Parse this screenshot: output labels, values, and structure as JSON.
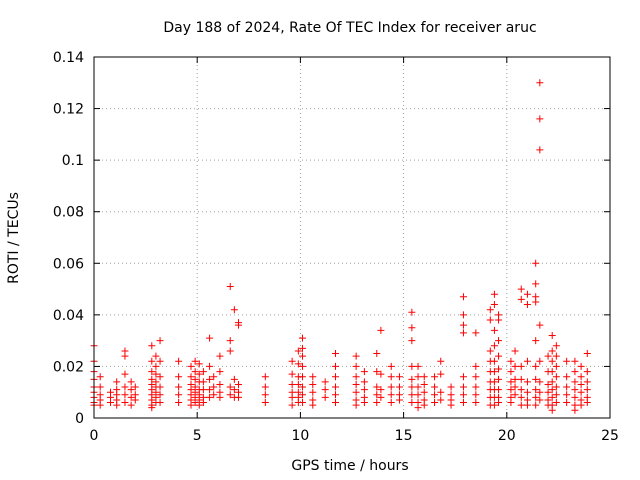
{
  "chart_data": {
    "type": "scatter",
    "title": "Day 188 of 2024, Rate Of TEC Index for receiver aruc",
    "xlabel": "GPS time / hours",
    "ylabel": "ROTI / TECUs",
    "xlim": [
      0,
      25
    ],
    "ylim": [
      0,
      0.14
    ],
    "x_ticks": [
      0,
      5,
      10,
      15,
      20,
      25
    ],
    "y_ticks": [
      0,
      0.02,
      0.04,
      0.06,
      0.08,
      0.1,
      0.12,
      0.14
    ],
    "x_tick_labels": [
      "0",
      "5",
      "10",
      "15",
      "20",
      "25"
    ],
    "y_tick_labels": [
      "0",
      "0.02",
      "0.04",
      "0.06",
      "0.08",
      "0.1",
      "0.12",
      "0.14"
    ],
    "grid": true,
    "marker": "plus",
    "marker_color": "#ff0000",
    "point_groups": [
      {
        "x": 0.0,
        "y": [
          0.028,
          0.022,
          0.018,
          0.015,
          0.012,
          0.01,
          0.008,
          0.006,
          0.005
        ]
      },
      {
        "x": 0.3,
        "y": [
          0.016,
          0.012,
          0.009,
          0.007,
          0.005
        ]
      },
      {
        "x": 0.8,
        "y": [
          0.01,
          0.008,
          0.006
        ]
      },
      {
        "x": 1.1,
        "y": [
          0.014,
          0.011,
          0.009,
          0.007,
          0.005
        ]
      },
      {
        "x": 1.5,
        "y": [
          0.026,
          0.024,
          0.017,
          0.012,
          0.009,
          0.006
        ]
      },
      {
        "x": 1.8,
        "y": [
          0.014,
          0.011,
          0.008,
          0.005
        ]
      },
      {
        "x": 2.0,
        "y": [
          0.012,
          0.009,
          0.007
        ]
      },
      {
        "x": 2.8,
        "y": [
          0.028,
          0.022,
          0.018,
          0.015,
          0.013,
          0.011,
          0.009,
          0.007,
          0.005,
          0.004
        ]
      },
      {
        "x": 3.0,
        "y": [
          0.024,
          0.02,
          0.017,
          0.014,
          0.012,
          0.01,
          0.008,
          0.006
        ]
      },
      {
        "x": 3.2,
        "y": [
          0.03,
          0.022,
          0.016,
          0.012,
          0.009,
          0.006
        ]
      },
      {
        "x": 4.1,
        "y": [
          0.022,
          0.016,
          0.012,
          0.009,
          0.006
        ]
      },
      {
        "x": 4.7,
        "y": [
          0.02,
          0.016,
          0.013,
          0.011,
          0.009,
          0.007,
          0.005
        ]
      },
      {
        "x": 4.9,
        "y": [
          0.022,
          0.018,
          0.015,
          0.012,
          0.01,
          0.008,
          0.006
        ]
      },
      {
        "x": 5.1,
        "y": [
          0.021,
          0.017,
          0.014,
          0.011,
          0.009,
          0.007,
          0.005
        ]
      },
      {
        "x": 5.3,
        "y": [
          0.018,
          0.014,
          0.011,
          0.008,
          0.006
        ]
      },
      {
        "x": 5.6,
        "y": [
          0.031,
          0.02,
          0.015,
          0.011,
          0.008
        ]
      },
      {
        "x": 5.8,
        "y": [
          0.016,
          0.012,
          0.009
        ]
      },
      {
        "x": 6.1,
        "y": [
          0.024,
          0.018,
          0.013,
          0.01,
          0.008
        ]
      },
      {
        "x": 6.6,
        "y": [
          0.051,
          0.03,
          0.026,
          0.012,
          0.009
        ]
      },
      {
        "x": 6.8,
        "y": [
          0.042,
          0.015,
          0.011,
          0.008
        ]
      },
      {
        "x": 7.0,
        "y": [
          0.037,
          0.036,
          0.013,
          0.01,
          0.008
        ]
      },
      {
        "x": 8.3,
        "y": [
          0.016,
          0.012,
          0.009,
          0.006
        ]
      },
      {
        "x": 9.6,
        "y": [
          0.022,
          0.017,
          0.013,
          0.01,
          0.008,
          0.005
        ]
      },
      {
        "x": 9.9,
        "y": [
          0.026,
          0.021,
          0.016,
          0.013,
          0.01,
          0.008,
          0.006
        ]
      },
      {
        "x": 10.1,
        "y": [
          0.031,
          0.027,
          0.024,
          0.02,
          0.016,
          0.012,
          0.009,
          0.006
        ]
      },
      {
        "x": 10.6,
        "y": [
          0.016,
          0.013,
          0.01,
          0.007,
          0.005
        ]
      },
      {
        "x": 11.2,
        "y": [
          0.014,
          0.011,
          0.008
        ]
      },
      {
        "x": 11.7,
        "y": [
          0.025,
          0.02,
          0.016,
          0.012,
          0.009,
          0.006
        ]
      },
      {
        "x": 12.7,
        "y": [
          0.024,
          0.02,
          0.016,
          0.013,
          0.01,
          0.007,
          0.005
        ]
      },
      {
        "x": 13.1,
        "y": [
          0.018,
          0.014,
          0.011,
          0.008,
          0.006
        ]
      },
      {
        "x": 13.7,
        "y": [
          0.025,
          0.018,
          0.012,
          0.009,
          0.006
        ]
      },
      {
        "x": 13.9,
        "y": [
          0.034,
          0.017,
          0.011,
          0.008
        ]
      },
      {
        "x": 14.4,
        "y": [
          0.02,
          0.016,
          0.012,
          0.009,
          0.006
        ]
      },
      {
        "x": 14.8,
        "y": [
          0.016,
          0.012,
          0.009,
          0.007
        ]
      },
      {
        "x": 15.4,
        "y": [
          0.041,
          0.035,
          0.03,
          0.02,
          0.015,
          0.012,
          0.009,
          0.006
        ]
      },
      {
        "x": 15.7,
        "y": [
          0.02,
          0.016,
          0.012,
          0.009,
          0.006,
          0.004
        ]
      },
      {
        "x": 16.0,
        "y": [
          0.016,
          0.013,
          0.01,
          0.007,
          0.005
        ]
      },
      {
        "x": 16.5,
        "y": [
          0.016,
          0.012,
          0.009,
          0.006
        ]
      },
      {
        "x": 16.8,
        "y": [
          0.022,
          0.017,
          0.01,
          0.007
        ]
      },
      {
        "x": 17.3,
        "y": [
          0.012,
          0.009,
          0.007,
          0.005
        ]
      },
      {
        "x": 17.9,
        "y": [
          0.047,
          0.04,
          0.036,
          0.033,
          0.016,
          0.012,
          0.009,
          0.006
        ]
      },
      {
        "x": 18.5,
        "y": [
          0.033,
          0.02,
          0.016,
          0.012,
          0.009,
          0.006
        ]
      },
      {
        "x": 19.2,
        "y": [
          0.042,
          0.038,
          0.026,
          0.022,
          0.018,
          0.014,
          0.011,
          0.008,
          0.005
        ]
      },
      {
        "x": 19.4,
        "y": [
          0.048,
          0.044,
          0.034,
          0.028,
          0.022,
          0.018,
          0.014,
          0.011,
          0.008,
          0.005
        ]
      },
      {
        "x": 19.6,
        "y": [
          0.04,
          0.038,
          0.03,
          0.024,
          0.019,
          0.015,
          0.011,
          0.008,
          0.006
        ]
      },
      {
        "x": 20.2,
        "y": [
          0.022,
          0.018,
          0.014,
          0.011,
          0.008,
          0.006
        ]
      },
      {
        "x": 20.4,
        "y": [
          0.026,
          0.02,
          0.015,
          0.012,
          0.009
        ]
      },
      {
        "x": 20.7,
        "y": [
          0.05,
          0.046,
          0.02,
          0.015,
          0.011,
          0.008,
          0.005
        ]
      },
      {
        "x": 21.0,
        "y": [
          0.048,
          0.044,
          0.022,
          0.014,
          0.01,
          0.007,
          0.005
        ]
      },
      {
        "x": 21.4,
        "y": [
          0.06,
          0.052,
          0.047,
          0.045,
          0.03,
          0.02,
          0.015,
          0.011,
          0.008,
          0.005
        ]
      },
      {
        "x": 21.6,
        "y": [
          0.13,
          0.116,
          0.104,
          0.036,
          0.022,
          0.014,
          0.01,
          0.007
        ]
      },
      {
        "x": 22.0,
        "y": [
          0.024,
          0.018,
          0.013,
          0.01,
          0.007,
          0.005
        ]
      },
      {
        "x": 22.2,
        "y": [
          0.032,
          0.026,
          0.022,
          0.018,
          0.014,
          0.011,
          0.008,
          0.005,
          0.003
        ]
      },
      {
        "x": 22.4,
        "y": [
          0.028,
          0.024,
          0.02,
          0.016,
          0.012,
          0.009,
          0.006
        ]
      },
      {
        "x": 22.9,
        "y": [
          0.022,
          0.016,
          0.012,
          0.009,
          0.006
        ]
      },
      {
        "x": 23.3,
        "y": [
          0.022,
          0.018,
          0.014,
          0.011,
          0.008,
          0.005,
          0.003
        ]
      },
      {
        "x": 23.6,
        "y": [
          0.02,
          0.016,
          0.013,
          0.01,
          0.007,
          0.005
        ]
      },
      {
        "x": 23.9,
        "y": [
          0.025,
          0.018,
          0.014,
          0.011,
          0.008,
          0.006
        ]
      }
    ]
  }
}
